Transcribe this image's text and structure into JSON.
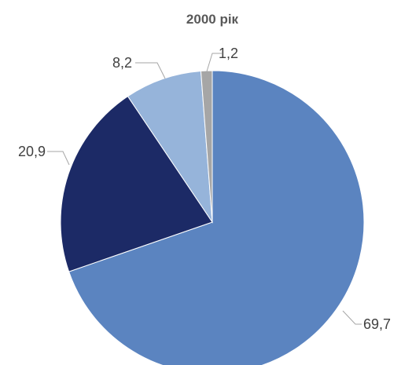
{
  "chart_data": {
    "type": "pie",
    "title": "2000 рік",
    "categories": [
      "",
      "",
      "",
      ""
    ],
    "values": [
      69.7,
      20.9,
      8.2,
      1.2
    ],
    "labels": [
      "69,7",
      "20,9",
      "8,2",
      "1,2"
    ],
    "colors": [
      "#5B84C0",
      "#1C2A66",
      "#96B4DA",
      "#A6A6A6"
    ],
    "start_angle_deg": 0,
    "direction": "clockwise",
    "legend": "none"
  }
}
